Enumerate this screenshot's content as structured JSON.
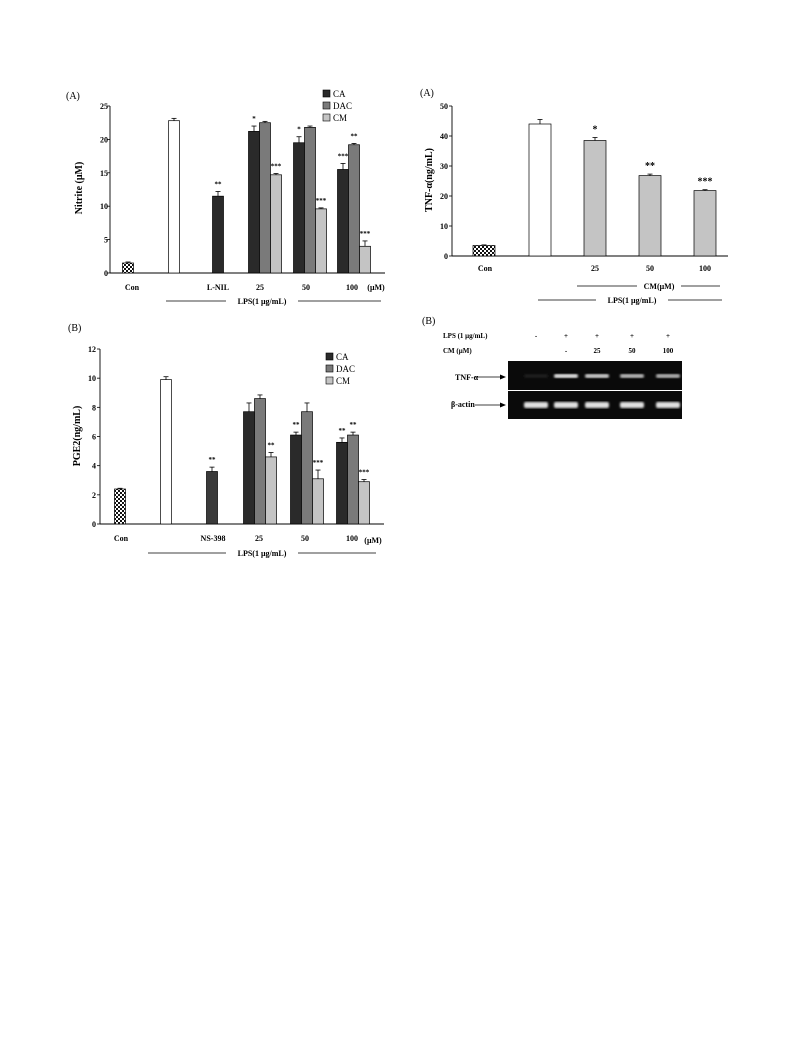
{
  "colors": {
    "CA": "#2a2a2a",
    "DAC": "#7a7a7a",
    "CM": "#c4c4c4",
    "control": "checkered",
    "LPS": "#ffffff",
    "NS": "#3a3a3a",
    "background": "#ffffff",
    "blot_background": "#0a0a0a",
    "blot_band": "#e8e8e8"
  },
  "chart_data": [
    {
      "id": "nitrite",
      "type": "bar",
      "panel_label": "(A)",
      "ylabel": "Nitrite (μM)",
      "ylim": [
        0,
        25
      ],
      "yticks": [
        "0",
        "5",
        "10",
        "15",
        "20",
        "25"
      ],
      "legend": [
        "CA",
        "DAC",
        "CM"
      ],
      "legend_position": "top-right",
      "xlabels": [
        "Con",
        "L-NIL",
        "25",
        "50",
        "100"
      ],
      "unit_label": "(μM)",
      "group_label": "LPS(1 μg/mL)",
      "bars": [
        {
          "group": "Con",
          "series": "control",
          "value": 1.5,
          "err": 0.15,
          "sig": ""
        },
        {
          "group": "LPS",
          "series": "LPS",
          "value": 22.8,
          "err": 0.35,
          "sig": ""
        },
        {
          "group": "L-NIL",
          "series": "CA",
          "value": 11.5,
          "err": 0.7,
          "sig": "**"
        },
        {
          "group": "25",
          "series": "CA",
          "value": 21.2,
          "err": 0.8,
          "sig": "*"
        },
        {
          "group": "25",
          "series": "DAC",
          "value": 22.5,
          "err": 0.2,
          "sig": ""
        },
        {
          "group": "25",
          "series": "CM",
          "value": 14.7,
          "err": 0.2,
          "sig": "***"
        },
        {
          "group": "50",
          "series": "CA",
          "value": 19.5,
          "err": 0.9,
          "sig": "*"
        },
        {
          "group": "50",
          "series": "DAC",
          "value": 21.8,
          "err": 0.2,
          "sig": ""
        },
        {
          "group": "50",
          "series": "CM",
          "value": 9.6,
          "err": 0.15,
          "sig": "***"
        },
        {
          "group": "100",
          "series": "CA",
          "value": 15.5,
          "err": 0.9,
          "sig": "***"
        },
        {
          "group": "100",
          "series": "DAC",
          "value": 19.2,
          "err": 0.2,
          "sig": "**"
        },
        {
          "group": "100",
          "series": "CM",
          "value": 4.0,
          "err": 0.8,
          "sig": "***"
        }
      ]
    },
    {
      "id": "pge2",
      "type": "bar",
      "panel_label": "(B)",
      "ylabel": "PGE2(ng/mL)",
      "ylim": [
        0,
        12
      ],
      "yticks": [
        "0",
        "2",
        "4",
        "6",
        "8",
        "10",
        "12"
      ],
      "legend": [
        "CA",
        "DAC",
        "CM"
      ],
      "legend_position": "top-right",
      "xlabels": [
        "Con",
        "NS-398",
        "25",
        "50",
        "100"
      ],
      "unit_label": "(μM)",
      "group_label": "LPS(1 μg/mL)",
      "bars": [
        {
          "group": "Con",
          "series": "control",
          "value": 2.4,
          "err": 0.05,
          "sig": ""
        },
        {
          "group": "LPS",
          "series": "LPS",
          "value": 9.9,
          "err": 0.2,
          "sig": ""
        },
        {
          "group": "NS-398",
          "series": "NS",
          "value": 3.6,
          "err": 0.3,
          "sig": "**"
        },
        {
          "group": "25",
          "series": "CA",
          "value": 7.7,
          "err": 0.6,
          "sig": ""
        },
        {
          "group": "25",
          "series": "DAC",
          "value": 8.6,
          "err": 0.25,
          "sig": ""
        },
        {
          "group": "25",
          "series": "CM",
          "value": 4.6,
          "err": 0.3,
          "sig": "**"
        },
        {
          "group": "50",
          "series": "CA",
          "value": 6.1,
          "err": 0.2,
          "sig": "**"
        },
        {
          "group": "50",
          "series": "DAC",
          "value": 7.7,
          "err": 0.6,
          "sig": ""
        },
        {
          "group": "50",
          "series": "CM",
          "value": 3.1,
          "err": 0.6,
          "sig": "***"
        },
        {
          "group": "100",
          "series": "CA",
          "value": 5.6,
          "err": 0.3,
          "sig": "**"
        },
        {
          "group": "100",
          "series": "DAC",
          "value": 6.1,
          "err": 0.2,
          "sig": "**"
        },
        {
          "group": "100",
          "series": "CM",
          "value": 2.9,
          "err": 0.15,
          "sig": "***"
        }
      ]
    },
    {
      "id": "tnf",
      "type": "bar",
      "panel_label": "(A)",
      "ylabel": "TNF-α(ng/mL)",
      "ylim": [
        0,
        50
      ],
      "yticks": [
        "0",
        "10",
        "20",
        "30",
        "40",
        "50"
      ],
      "xlabels": [
        "Con",
        "25",
        "50",
        "100"
      ],
      "cm_label": "CM(μM)",
      "group_label": "LPS(1 μg/mL)",
      "bars": [
        {
          "group": "Con",
          "series": "control",
          "value": 3.5,
          "err": 0.2,
          "sig": ""
        },
        {
          "group": "LPS",
          "series": "LPS",
          "value": 44.0,
          "err": 1.5,
          "sig": ""
        },
        {
          "group": "25",
          "series": "CM",
          "value": 38.5,
          "err": 1.0,
          "sig": "*"
        },
        {
          "group": "50",
          "series": "CM",
          "value": 26.8,
          "err": 0.5,
          "sig": "**"
        },
        {
          "group": "100",
          "series": "CM",
          "value": 21.8,
          "err": 0.3,
          "sig": "***"
        }
      ]
    }
  ],
  "blot": {
    "panel_label": "(B)",
    "rows": [
      {
        "label": "LPS (1 μg/mL)",
        "values": [
          "-",
          "+",
          "+",
          "+",
          "+"
        ]
      },
      {
        "label": "CM (μM)",
        "values": [
          "",
          "-",
          "25",
          "50",
          "100"
        ]
      }
    ],
    "bands": [
      {
        "label": "TNF-α",
        "intensity": [
          0.05,
          0.95,
          0.85,
          0.75,
          0.72
        ]
      },
      {
        "label": "β-actin",
        "intensity": [
          0.95,
          0.95,
          0.95,
          0.95,
          0.95
        ]
      }
    ]
  }
}
